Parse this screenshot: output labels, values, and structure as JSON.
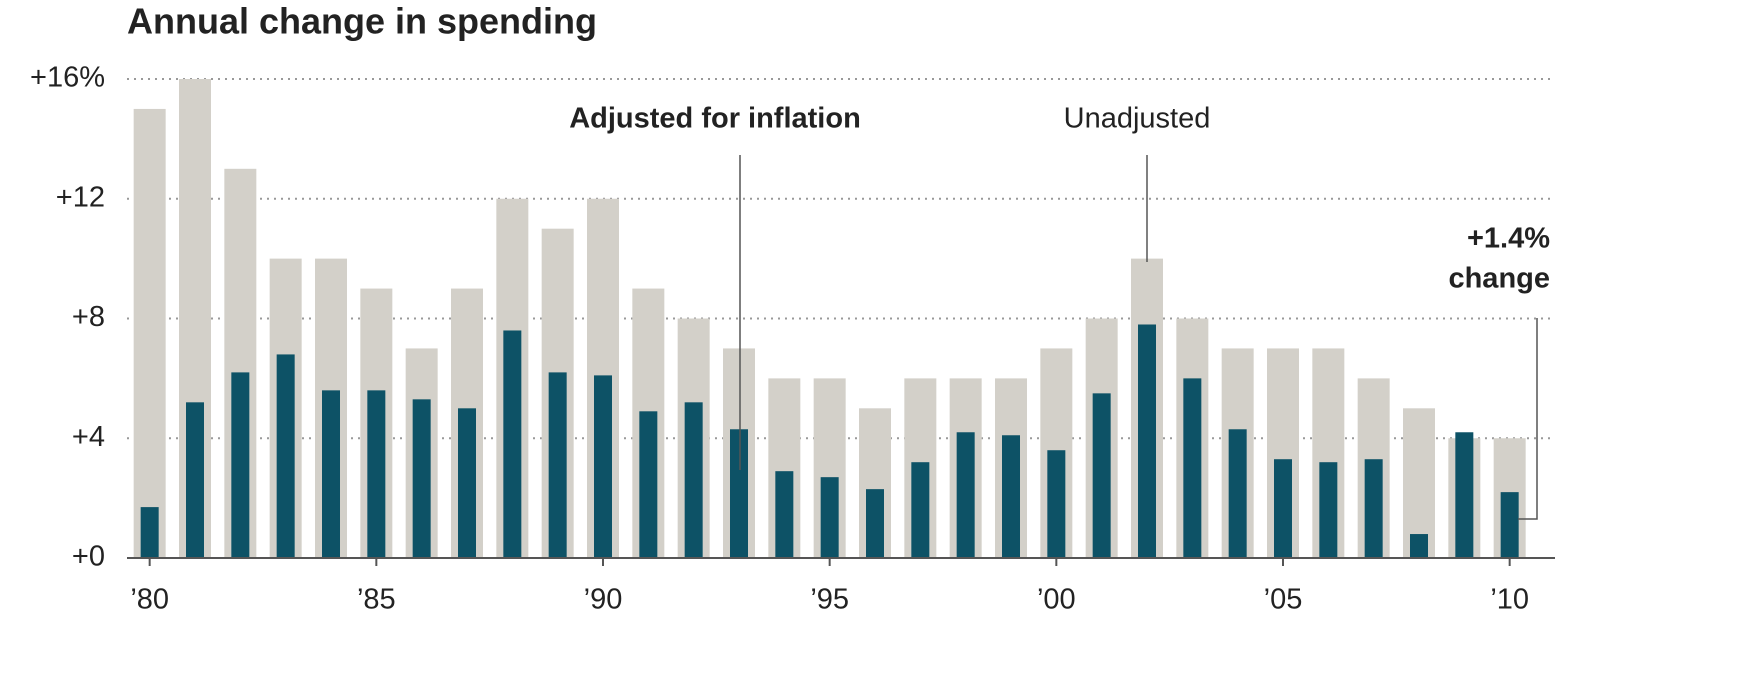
{
  "chart_data": {
    "type": "bar",
    "title": "Annual change in spending",
    "x": [
      1980,
      1981,
      1982,
      1983,
      1984,
      1985,
      1986,
      1987,
      1988,
      1989,
      1990,
      1991,
      1992,
      1993,
      1994,
      1995,
      1996,
      1997,
      1998,
      1999,
      2000,
      2001,
      2002,
      2003,
      2004,
      2005,
      2006,
      2007,
      2008,
      2009,
      2010
    ],
    "series": [
      {
        "name": "Unadjusted",
        "color": "#d3d0c9",
        "values": [
          15,
          16,
          13,
          10,
          10,
          9,
          7,
          9,
          12,
          11,
          12,
          9,
          8,
          7,
          6,
          6,
          5,
          6,
          6,
          6,
          7,
          8,
          10,
          8,
          7,
          7,
          7,
          6,
          5,
          4,
          4
        ]
      },
      {
        "name": "Adjusted for inflation",
        "color": "#0d5266",
        "values": [
          1.7,
          5.2,
          6.2,
          6.8,
          5.6,
          5.6,
          5.3,
          5.0,
          7.6,
          6.2,
          6.1,
          4.9,
          5.2,
          4.3,
          2.9,
          2.7,
          2.3,
          3.2,
          4.2,
          4.1,
          3.6,
          5.5,
          7.8,
          6.0,
          4.3,
          3.3,
          3.2,
          3.3,
          0.8,
          4.2,
          2.2
        ]
      }
    ],
    "annotation_lines": [
      "+1.4%",
      "change"
    ],
    "xlim": [
      1979.5,
      2011
    ],
    "xticks": [
      {
        "value": 1980,
        "label": "’80"
      },
      {
        "value": 1985,
        "label": "’85"
      },
      {
        "value": 1990,
        "label": "’90"
      },
      {
        "value": 1995,
        "label": "’95"
      },
      {
        "value": 2000,
        "label": "’00"
      },
      {
        "value": 2005,
        "label": "’05"
      },
      {
        "value": 2010,
        "label": "’10"
      }
    ],
    "ylim": [
      0,
      16
    ],
    "yticks": [
      {
        "value": 0,
        "label": "+0"
      },
      {
        "value": 4,
        "label": "+4"
      },
      {
        "value": 8,
        "label": "+8"
      },
      {
        "value": 12,
        "label": "+12"
      },
      {
        "value": 16,
        "label": "+16%"
      }
    ],
    "grid": true
  }
}
